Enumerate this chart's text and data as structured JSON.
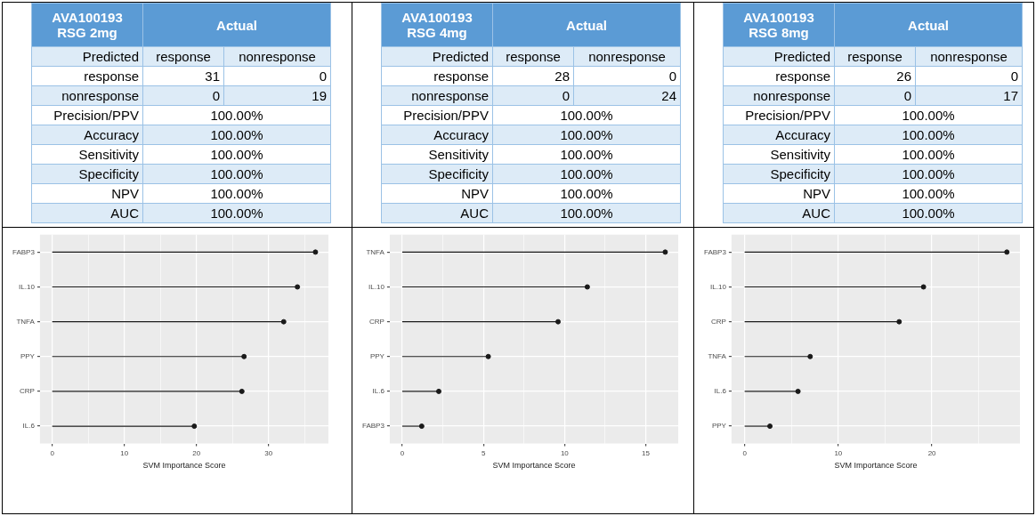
{
  "chart_data": [
    {
      "type": "other",
      "title": "AVA100193 RSG 2mg",
      "annotations": [
        "Actual",
        "Predicted",
        "response",
        "nonresponse",
        "response",
        "31",
        "0",
        "nonresponse",
        "0",
        "19",
        "Precision/PPV",
        "100.00%",
        "Accuracy",
        "100.00%",
        "Sensitivity",
        "100.00%",
        "Specificity",
        "100.00%",
        "NPV",
        "100.00%",
        "AUC",
        "100.00%"
      ]
    },
    {
      "type": "other",
      "title": "AVA100193 RSG 4mg",
      "annotations": [
        "Actual",
        "Predicted",
        "response",
        "nonresponse",
        "response",
        "28",
        "0",
        "nonresponse",
        "0",
        "24",
        "Precision/PPV",
        "100.00%",
        "Accuracy",
        "100.00%",
        "Sensitivity",
        "100.00%",
        "Specificity",
        "100.00%",
        "NPV",
        "100.00%",
        "AUC",
        "100.00%"
      ]
    },
    {
      "type": "other",
      "title": "AVA100193 RSG 8mg",
      "annotations": [
        "Actual",
        "Predicted",
        "response",
        "nonresponse",
        "response",
        "26",
        "0",
        "nonresponse",
        "0",
        "17",
        "Precision/PPV",
        "100.00%",
        "Accuracy",
        "100.00%",
        "Sensitivity",
        "100.00%",
        "Specificity",
        "100.00%",
        "NPV",
        "100.00%",
        "AUC",
        "100.00%"
      ]
    },
    {
      "type": "lollipop",
      "orientation": "horizontal",
      "xlabel": "SVM Importance Score",
      "categories": [
        "FABP3",
        "IL.10",
        "TNFA",
        "PPY",
        "CRP",
        "IL.6"
      ],
      "values": [
        36.5,
        34.0,
        32.1,
        26.6,
        26.3,
        19.7
      ],
      "color": "#1a1a1a",
      "xlim": [
        -1.7,
        38.3
      ],
      "xticks": [
        0,
        {
          "value": 5,
          "label": null
        },
        10,
        {
          "value": 15,
          "label": null
        },
        20,
        {
          "value": 25,
          "label": null
        },
        30,
        {
          "value": 35,
          "label": null
        }
      ],
      "grid": true,
      "marker": "circle"
    },
    {
      "type": "lollipop",
      "orientation": "horizontal",
      "xlabel": "SVM Importance Score",
      "categories": [
        "TNFA",
        "IL.10",
        "CRP",
        "PPY",
        "IL.6",
        "FABP3"
      ],
      "values": [
        16.2,
        11.4,
        9.6,
        5.3,
        2.25,
        1.2
      ],
      "color": "#1a1a1a",
      "xlim": [
        -0.77,
        17.0
      ],
      "xticks": [
        0,
        {
          "value": 2.5,
          "label": null
        },
        5,
        {
          "value": 7.5,
          "label": null
        },
        10,
        {
          "value": 12.5,
          "label": null
        },
        15
      ],
      "grid": true,
      "marker": "circle"
    },
    {
      "type": "lollipop",
      "orientation": "horizontal",
      "xlabel": "SVM Importance Score",
      "categories": [
        "FABP3",
        "IL.10",
        "CRP",
        "TNFA",
        "IL.6",
        "PPY"
      ],
      "values": [
        28.0,
        19.1,
        16.5,
        7.0,
        5.7,
        2.7
      ],
      "color": "#1a1a1a",
      "xlim": [
        -1.4,
        29.4
      ],
      "xticks": [
        0,
        {
          "value": 5,
          "label": null
        },
        10,
        {
          "value": 15,
          "label": null
        },
        20,
        {
          "value": 25,
          "label": null
        }
      ],
      "grid": true,
      "marker": "circle"
    }
  ]
}
